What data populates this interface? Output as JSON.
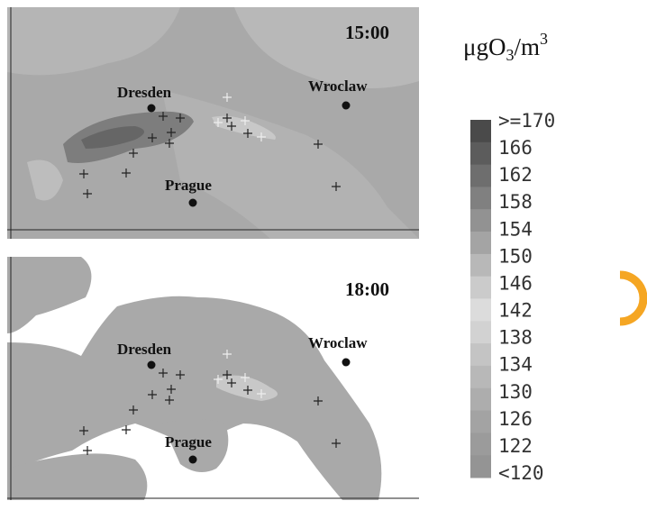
{
  "unit": {
    "base": "μgO",
    "sub": "3",
    "mid": "/m",
    "sup": "3"
  },
  "panels": [
    {
      "time": "15:00",
      "cities": [
        "Dresden",
        "Wroclaw",
        "Prague"
      ]
    },
    {
      "time": "18:00",
      "cities": [
        "Dresden",
        "Wroclaw",
        "Prague"
      ]
    }
  ],
  "legend": {
    "labels": [
      ">=170",
      "166",
      "162",
      "158",
      "154",
      "150",
      "146",
      "142",
      "138",
      "134",
      "130",
      "126",
      "122",
      "<120"
    ]
  }
}
